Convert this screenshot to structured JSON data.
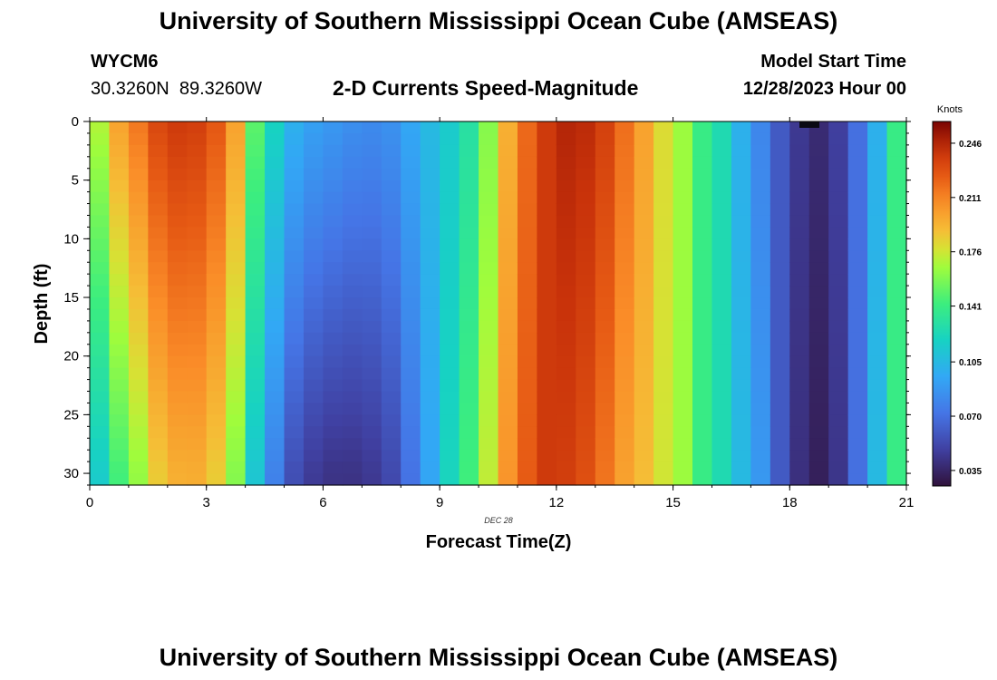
{
  "header": {
    "title": "University of Southern Mississippi Ocean Cube (AMSEAS)",
    "station_id": "WYCM6",
    "lat": "30.3260N",
    "lon": "89.3260W",
    "subtitle": "2-D Currents Speed-Magnitude",
    "model_label": "Model Start Time",
    "model_time": "12/28/2023 Hour 00"
  },
  "footer": {
    "title": "University of Southern Mississippi Ocean Cube (AMSEAS)"
  },
  "chart_data": {
    "type": "heatmap",
    "title": "2-D Currents Speed-Magnitude",
    "xlabel": "Forecast Time(Z)",
    "ylabel": "Depth (ft)",
    "date_label": "DEC 28",
    "xlim": [
      0,
      21
    ],
    "ylim": [
      0,
      31
    ],
    "x_ticks": [
      0,
      3,
      6,
      9,
      12,
      15,
      18,
      21
    ],
    "y_ticks": [
      0,
      5,
      10,
      15,
      20,
      25,
      30
    ],
    "x_step_hours": 0.5,
    "y_step_ft": 1,
    "colorbar": {
      "label": "Knots",
      "ticks": [
        "0.246",
        "0.211",
        "0.176",
        "0.141",
        "0.105",
        "0.070",
        "0.035"
      ],
      "range": [
        0.025,
        0.26
      ]
    },
    "speed_profile_knots": {
      "times": [
        0,
        0.5,
        1,
        1.5,
        2,
        2.5,
        3,
        3.5,
        4,
        4.5,
        5,
        5.5,
        6,
        6.5,
        7,
        7.5,
        8,
        8.5,
        9,
        9.5,
        10,
        10.5,
        11,
        11.5,
        12,
        12.5,
        13,
        13.5,
        14,
        14.5,
        15,
        15.5,
        16,
        16.5,
        17,
        17.5,
        18,
        18.5,
        19,
        19.5,
        20,
        20.5
      ],
      "surface": [
        0.17,
        0.2,
        0.215,
        0.232,
        0.238,
        0.236,
        0.226,
        0.2,
        0.15,
        0.12,
        0.1,
        0.092,
        0.088,
        0.084,
        0.082,
        0.085,
        0.095,
        0.105,
        0.115,
        0.13,
        0.16,
        0.195,
        0.22,
        0.238,
        0.246,
        0.244,
        0.235,
        0.218,
        0.2,
        0.18,
        0.165,
        0.14,
        0.125,
        0.1,
        0.08,
        0.06,
        0.045,
        0.038,
        0.048,
        0.07,
        0.1,
        0.14
      ],
      "depth_factor_at_30ft": [
        0.68,
        0.72,
        0.76,
        0.8,
        0.82,
        0.83,
        0.82,
        0.8,
        0.75,
        0.65,
        0.55,
        0.5,
        0.48,
        0.5,
        0.55,
        0.62,
        0.75,
        0.9,
        1.05,
        1.1,
        1.08,
        1.05,
        1.02,
        1.0,
        0.96,
        0.94,
        0.92,
        0.92,
        0.95,
        0.98,
        1.0,
        1.0,
        1.0,
        1.05,
        1.1,
        1.0,
        0.9,
        0.85,
        0.9,
        1.0,
        1.05,
        1.0
      ]
    }
  }
}
